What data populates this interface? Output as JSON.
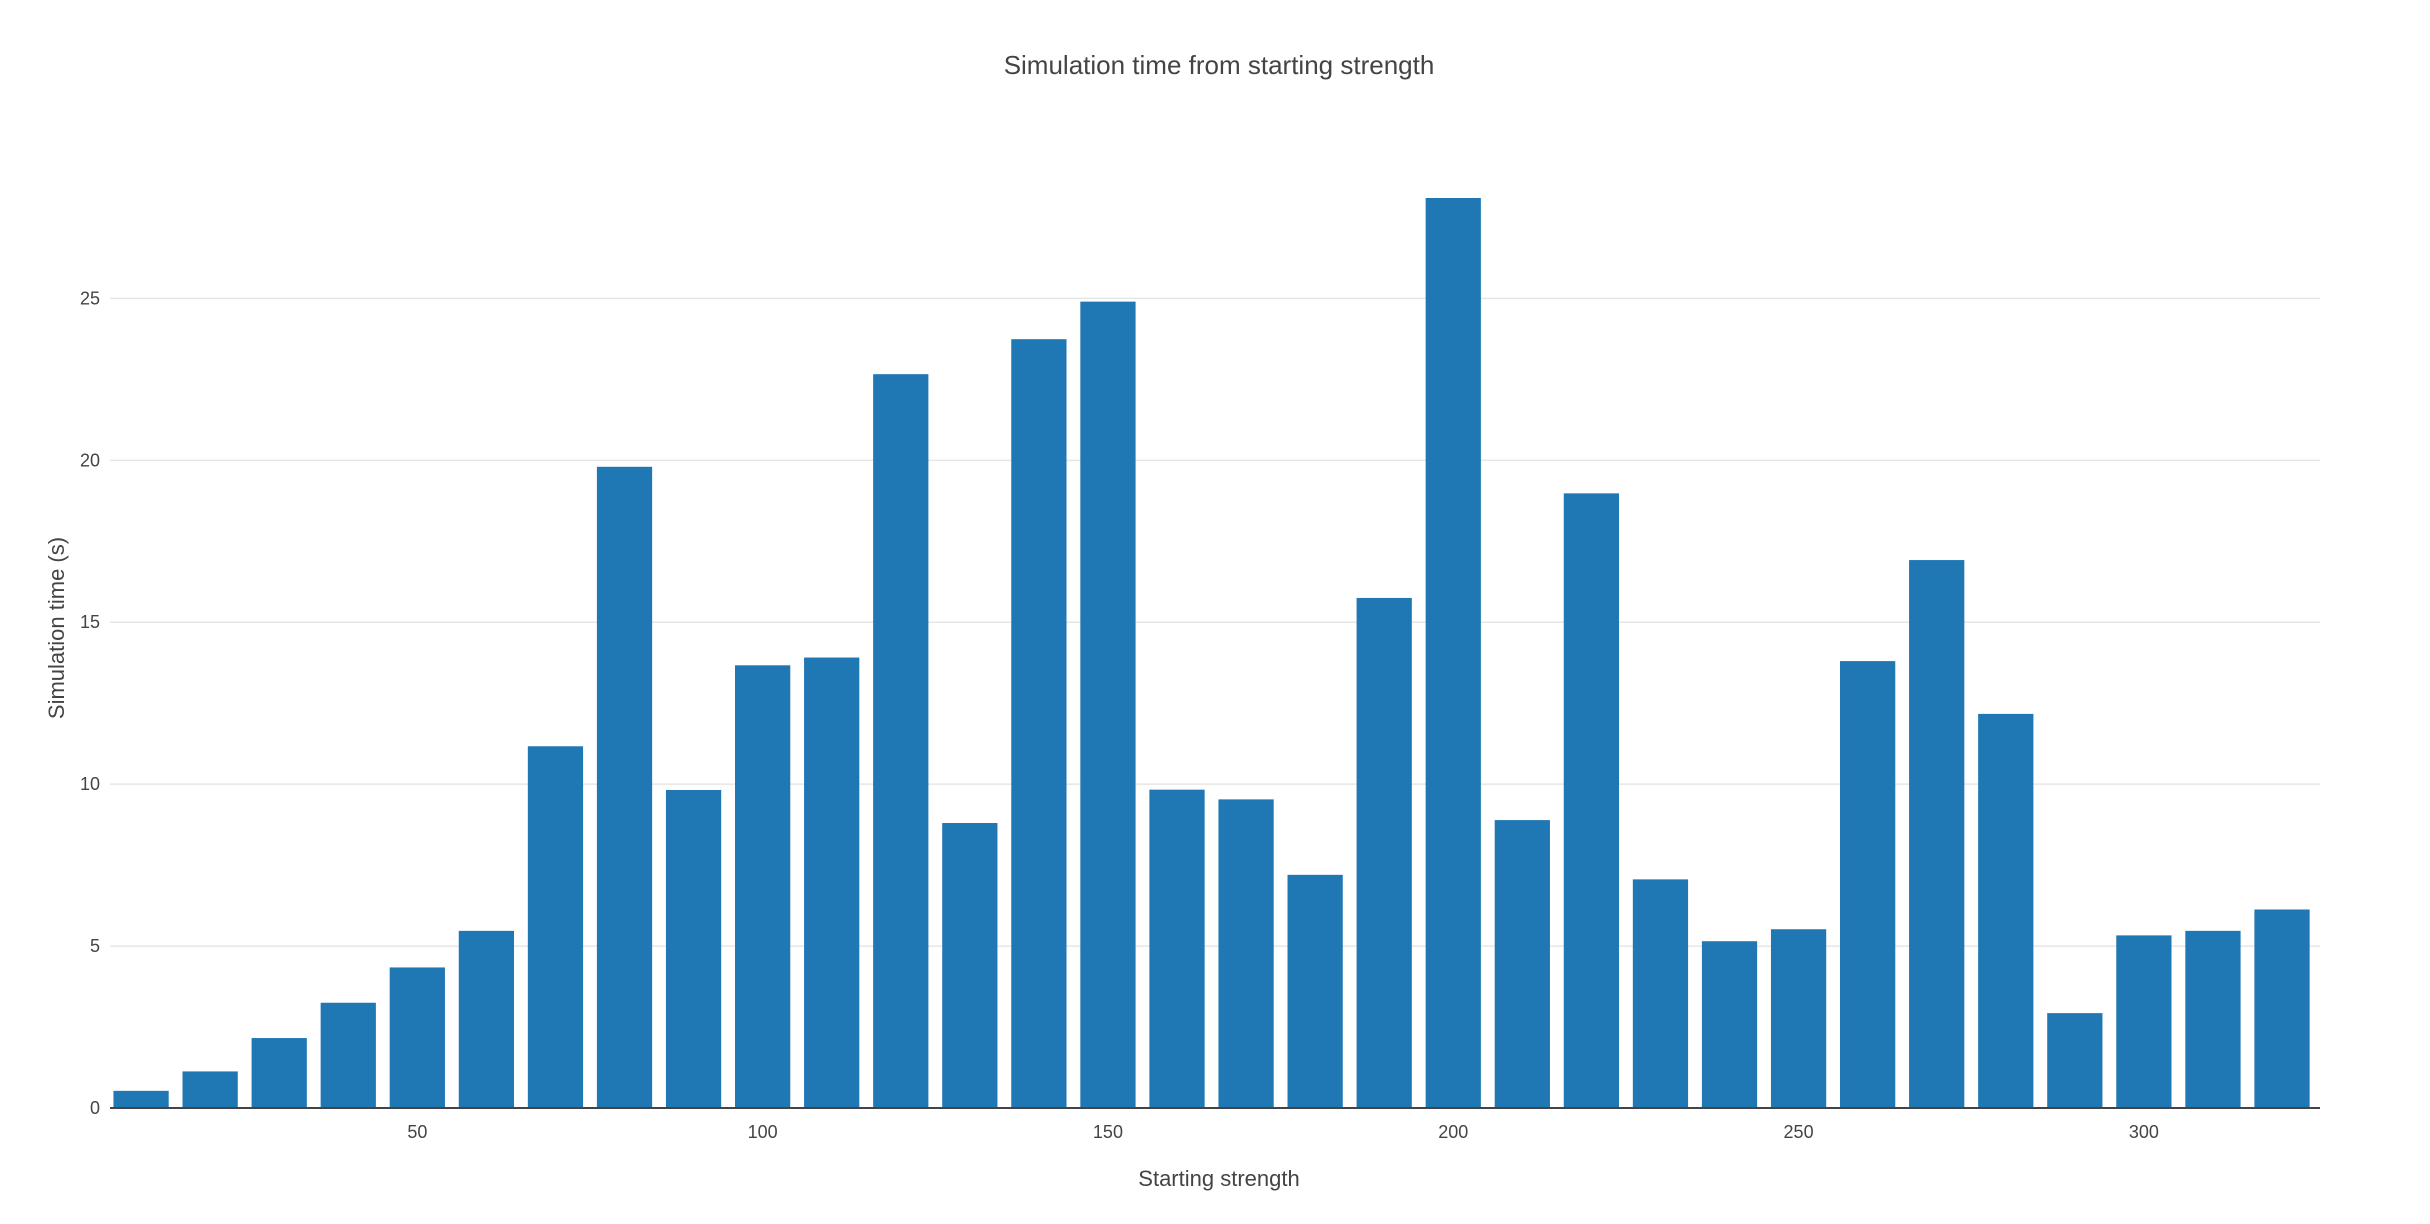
{
  "chart_data": {
    "type": "bar",
    "title": "Simulation time from starting strength",
    "xlabel": "Starting strength",
    "ylabel": "Simulation time (s)",
    "x": [
      10,
      20,
      30,
      40,
      50,
      60,
      70,
      80,
      90,
      100,
      110,
      120,
      130,
      140,
      150,
      160,
      170,
      180,
      190,
      200,
      210,
      220,
      230,
      240,
      250,
      260,
      270,
      280,
      290,
      300,
      310,
      320
    ],
    "values": [
      0.53,
      1.13,
      2.16,
      3.25,
      4.34,
      5.47,
      11.17,
      19.8,
      9.82,
      13.67,
      13.91,
      22.66,
      8.8,
      23.74,
      24.9,
      9.83,
      9.53,
      7.2,
      15.75,
      28.1,
      8.89,
      18.98,
      7.06,
      5.15,
      5.52,
      13.8,
      16.92,
      12.17,
      2.93,
      5.33,
      5.47,
      6.13
    ],
    "xlim": [
      5.5,
      325.5
    ],
    "ylim": [
      0,
      28.1
    ],
    "xticks": [
      50,
      100,
      150,
      200,
      250,
      300
    ],
    "yticks": [
      0,
      5,
      10,
      15,
      20,
      25
    ],
    "bar_color": "#1f77b4",
    "grid": true
  }
}
